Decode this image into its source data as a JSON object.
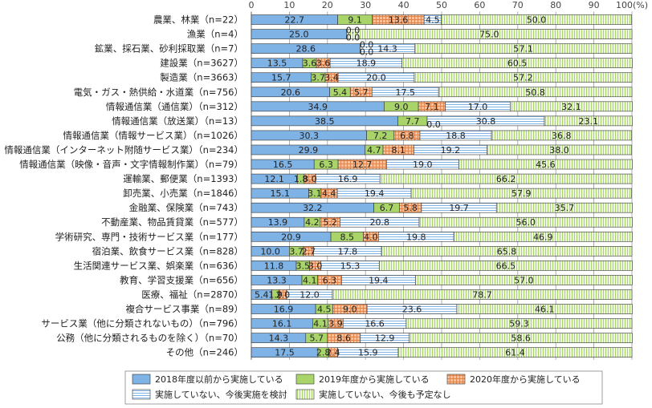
{
  "chart_data": {
    "type": "bar",
    "orientation": "horizontal",
    "stacked": true,
    "xlim": [
      0,
      100
    ],
    "x_ticks": [
      "0",
      "10",
      "20",
      "30",
      "40",
      "50",
      "60",
      "70",
      "80",
      "90",
      "100(%)"
    ],
    "categories": [
      "農業、林業（n=22）",
      "漁業（n=4）",
      "鉱業、採石業、砂利採取業（n=7）",
      "建設業（n=3627）",
      "製造業（n=3663）",
      "電気・ガス・熱供給・水道業（n=756）",
      "情報通信業（通信業）（n=312）",
      "情報通信業（放送業）（n=13）",
      "情報通信業（情報サービス業）（n=1026）",
      "情報通信業（インターネット附随サービス業）（n=234）",
      "情報通信業（映像・音声・文字情報制作業）（n=79）",
      "運輸業、郵便業（n=1393）",
      "卸売業、小売業（n=1846）",
      "金融業、保険業（n=743）",
      "不動産業、物品賃貸業（n=577）",
      "学術研究、専門・技術サービス業（n=177）",
      "宿泊業、飲食サービス業（n=828）",
      "生活関連サービス業、娯楽業（n=636）",
      "教育、学習支援業（n=656）",
      "医療、福祉（n=2870）",
      "複合サービス事業（n=89）",
      "サービス業（他に分類されないもの）（n=796）",
      "公務（他に分類されるものを除く）（n=70）",
      "その他（n=246）"
    ],
    "series": [
      {
        "name": "2018年度以前から実施している",
        "color": "#7fb2e5",
        "pattern": "solid",
        "values": [
          22.7,
          25.0,
          28.6,
          13.5,
          15.7,
          20.6,
          34.9,
          38.5,
          30.3,
          29.9,
          16.5,
          12.1,
          15.1,
          32.2,
          13.9,
          20.9,
          10.0,
          11.8,
          13.3,
          5.4,
          16.9,
          16.1,
          14.3,
          17.5
        ]
      },
      {
        "name": "2019年度から実施している",
        "color": "#a8d46a",
        "pattern": "solid",
        "values": [
          9.1,
          0.0,
          0.0,
          3.6,
          3.7,
          5.4,
          9.0,
          7.7,
          7.2,
          4.7,
          6.3,
          1.8,
          3.1,
          6.7,
          4.2,
          8.5,
          3.7,
          3.5,
          4.1,
          1.9,
          4.5,
          4.1,
          5.7,
          2.8
        ]
      },
      {
        "name": "2020年度から実施している",
        "color": "#f0b48a",
        "pattern": "grid",
        "values": [
          13.6,
          0.0,
          0.0,
          3.6,
          3.4,
          5.7,
          7.1,
          0.0,
          6.8,
          8.1,
          12.7,
          3.0,
          4.4,
          5.8,
          5.2,
          4.0,
          2.7,
          3.0,
          6.3,
          2.0,
          9.0,
          3.9,
          8.6,
          2.4
        ]
      },
      {
        "name": "実施していない、今後実施を検討",
        "color": "#c9ddf3",
        "pattern": "hlines",
        "values": [
          4.5,
          0.0,
          14.3,
          18.9,
          20.0,
          17.5,
          17.0,
          30.8,
          18.8,
          19.2,
          19.0,
          16.9,
          19.4,
          19.7,
          20.8,
          19.8,
          17.8,
          15.3,
          19.4,
          12.0,
          23.6,
          16.6,
          12.9,
          15.9
        ]
      },
      {
        "name": "実施していない、今後も予定なし",
        "color": "#d7ebb4",
        "pattern": "vlines",
        "values": [
          50.0,
          75.0,
          57.1,
          60.5,
          57.2,
          50.8,
          32.1,
          23.1,
          36.8,
          38.0,
          45.6,
          66.2,
          57.9,
          35.7,
          56.0,
          46.9,
          65.8,
          66.5,
          57.0,
          78.7,
          46.1,
          59.3,
          58.6,
          61.4
        ]
      }
    ],
    "value_labels": [
      [
        "22.7",
        "9.1",
        "13.6",
        "4.5",
        "50.0"
      ],
      [
        "25.0",
        "0.0",
        "0.0",
        "",
        "75.0"
      ],
      [
        "28.6",
        "0.0",
        "0.0",
        "14.3",
        "57.1"
      ],
      [
        "13.5",
        "3.6",
        "3.6",
        "18.9",
        "60.5"
      ],
      [
        "15.7",
        "3.7",
        "3.4",
        "20.0",
        "57.2"
      ],
      [
        "20.6",
        "5.4",
        "5.7",
        "17.5",
        "50.8"
      ],
      [
        "34.9",
        "9.0",
        "7.1",
        "17.0",
        "32.1"
      ],
      [
        "38.5",
        "7.7",
        "0.0",
        "30.8",
        "23.1"
      ],
      [
        "30.3",
        "7.2",
        "6.8",
        "18.8",
        "36.8"
      ],
      [
        "29.9",
        "4.7",
        "8.1",
        "19.2",
        "38.0"
      ],
      [
        "16.5",
        "6.3",
        "12.7",
        "19.0",
        "45.6"
      ],
      [
        "12.1",
        "1.8",
        "3.0",
        "16.9",
        "66.2"
      ],
      [
        "15.1",
        "3.1",
        "4.4",
        "19.4",
        "57.9"
      ],
      [
        "32.2",
        "6.7",
        "5.8",
        "19.7",
        "35.7"
      ],
      [
        "13.9",
        "4.2",
        "5.2",
        "20.8",
        "56.0"
      ],
      [
        "20.9",
        "8.5",
        "4.0",
        "19.8",
        "46.9"
      ],
      [
        "10.0",
        "3.7",
        "2.7",
        "17.8",
        "65.8"
      ],
      [
        "11.8",
        "3.5",
        "3.0",
        "15.3",
        "66.5"
      ],
      [
        "13.3",
        "4.1",
        "6.3",
        "19.4",
        "57.0"
      ],
      [
        "5.4",
        "1.9",
        "2.0",
        "12.0",
        "78.7"
      ],
      [
        "16.9",
        "4.5",
        "9.0",
        "23.6",
        "46.1"
      ],
      [
        "16.1",
        "4.1",
        "3.9",
        "16.6",
        "59.3"
      ],
      [
        "14.3",
        "5.7",
        "8.6",
        "12.9",
        "58.6"
      ],
      [
        "17.5",
        "2.8",
        "2.4",
        "15.9",
        "61.4"
      ]
    ],
    "legend": {
      "placement": "bottom",
      "entries": [
        "2018年度以前から実施している",
        "2019年度から実施している",
        "2020年度から実施している",
        "実施していない、今後実施を検討",
        "実施していない、今後も予定なし"
      ]
    },
    "grid": true
  }
}
